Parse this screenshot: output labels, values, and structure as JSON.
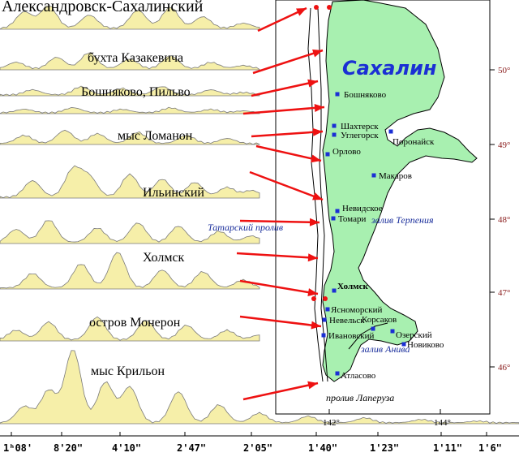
{
  "map": {
    "title": "Сахалин",
    "colors": {
      "land": "#a8f0b0",
      "coast": "#000000",
      "station": "#1b2fd4",
      "arrow": "#ee1111",
      "wave_fill": "#f6efa9",
      "wave_stroke": "#7a7a7a",
      "sea_text": "#1b2f9c",
      "lat_text": "#8a1c1c"
    },
    "stations": [
      {
        "name": "Бошняково"
      },
      {
        "name": "Шахтерск"
      },
      {
        "name": "Углегорск"
      },
      {
        "name": "Поронайск"
      },
      {
        "name": "Орлово"
      },
      {
        "name": "Макаров"
      },
      {
        "name": "Невидское"
      },
      {
        "name": "Томари"
      },
      {
        "name": "Холмск"
      },
      {
        "name": "Ясноморский"
      },
      {
        "name": "Невельск"
      },
      {
        "name": "Корсаков"
      },
      {
        "name": "Ивановский"
      },
      {
        "name": "Озерский"
      },
      {
        "name": "Новиково"
      },
      {
        "name": "Атласово"
      }
    ],
    "water_labels": {
      "bay_terpeniya": "залив Терпения",
      "tatar_strait": "Татарский пролив",
      "aniva_bay": "залив Анива",
      "la_perouse": "пролив Лаперуза"
    },
    "lat_labels": [
      "50°",
      "49°",
      "48°",
      "47°",
      "46°"
    ],
    "lon_labels": [
      "142°",
      "144°"
    ]
  },
  "records": [
    {
      "label": "Александровск-Сахалинский"
    },
    {
      "label": "бухта Казакевича"
    },
    {
      "label": "Бошняково, Пильво"
    },
    {
      "label": "мыс Ломанон"
    },
    {
      "label": "Ильинский"
    },
    {
      "label": "Холмск"
    },
    {
      "label": "остров Монерон"
    },
    {
      "label": "мыс Крильон"
    }
  ],
  "time_axis": {
    "labels": [
      "1ʰ08'",
      "8'20\"",
      "4'10\"",
      "2'47\"",
      "2'05\"",
      "1'40\"",
      "1'23\"",
      "1'11\"",
      "1'6\""
    ]
  }
}
